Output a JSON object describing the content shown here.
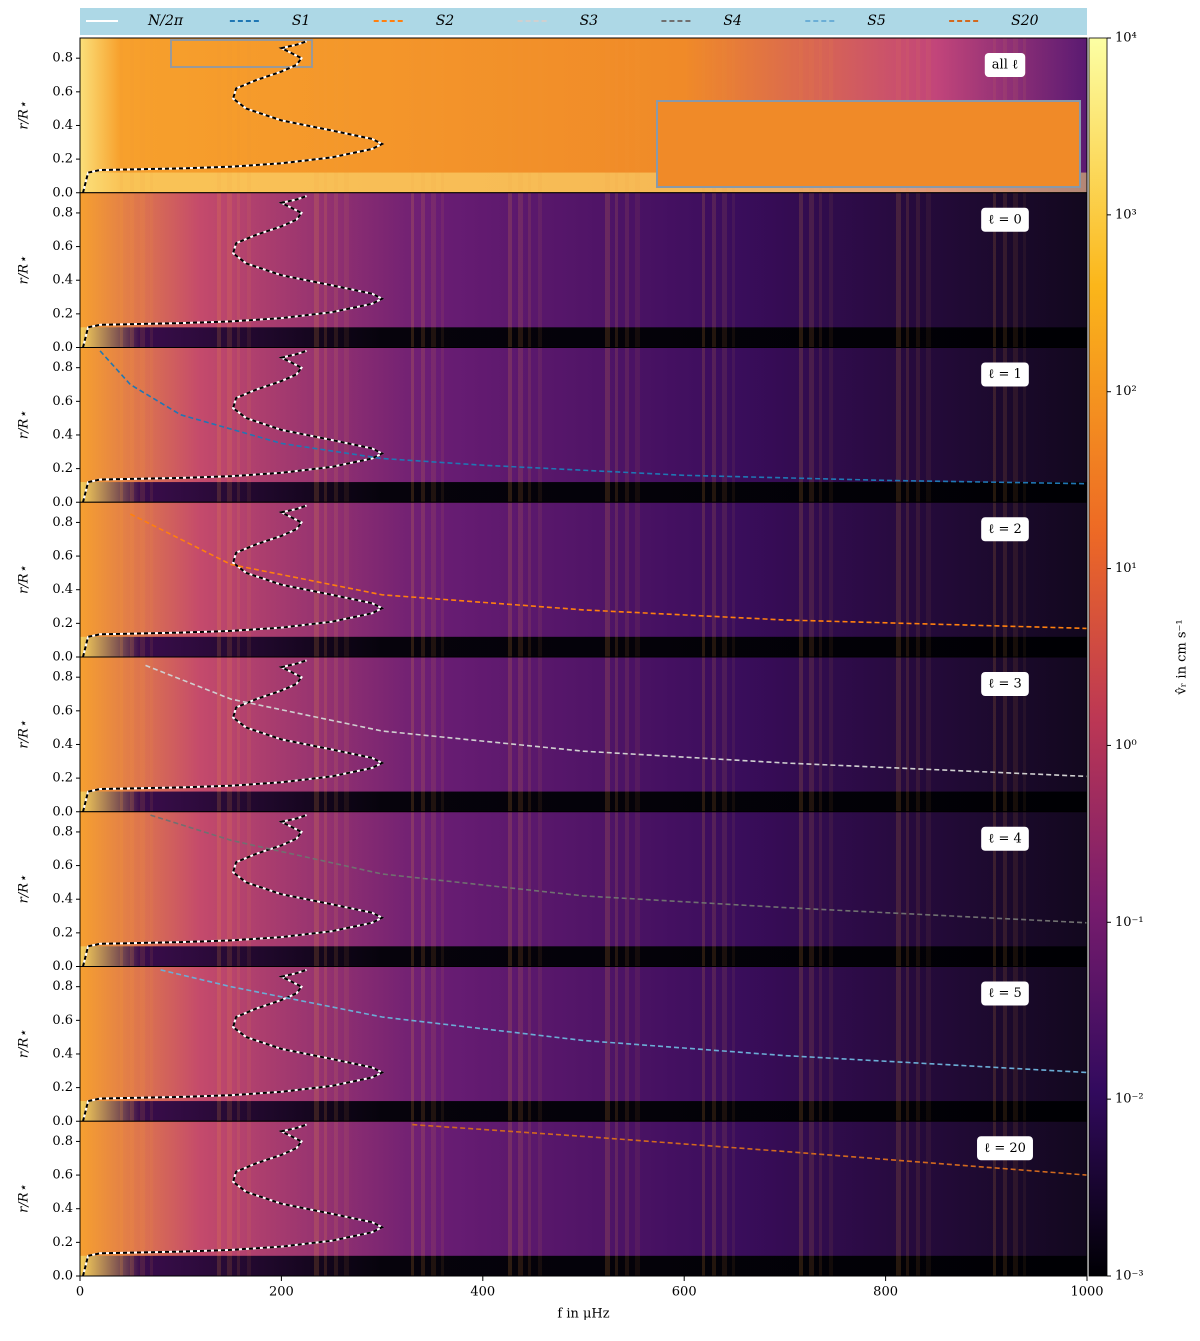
{
  "chart_data": [
    {
      "type": "heatmap",
      "annotation": "all ℓ",
      "ylabel": "r/R⋆",
      "xlim": [
        0,
        1000
      ],
      "ylim": [
        0,
        0.92
      ],
      "yticks": [
        {
          "value": 0,
          "label": "0.0"
        },
        0.2,
        0.4,
        0.6,
        0.8
      ],
      "series": [
        {
          "name": "N/2π",
          "color": "#ffffff",
          "x": [
            3,
            8,
            20,
            100,
            150,
            200,
            250,
            290,
            300,
            290,
            250,
            200,
            165,
            152,
            155,
            175,
            200,
            215,
            220,
            210,
            200,
            215,
            225
          ],
          "values": [
            0.0,
            0.12,
            0.135,
            0.145,
            0.155,
            0.175,
            0.21,
            0.26,
            0.29,
            0.32,
            0.37,
            0.43,
            0.5,
            0.56,
            0.62,
            0.67,
            0.72,
            0.76,
            0.8,
            0.83,
            0.86,
            0.88,
            0.9
          ]
        }
      ]
    },
    {
      "type": "heatmap",
      "annotation": "ℓ = 0",
      "ylabel": "r/R⋆",
      "xlim": [
        0,
        1000
      ],
      "ylim": [
        0,
        0.92
      ],
      "yticks": [
        {
          "value": 0,
          "label": "0.0"
        },
        0.2,
        0.4,
        0.6,
        0.8
      ],
      "series": []
    },
    {
      "type": "heatmap",
      "annotation": "ℓ = 1",
      "ylabel": "r/R⋆",
      "xlim": [
        0,
        1000
      ],
      "ylim": [
        0,
        0.92
      ],
      "yticks": [
        {
          "value": 0,
          "label": "0.0"
        },
        0.2,
        0.4,
        0.6,
        0.8
      ],
      "series": [
        {
          "name": "S1",
          "color": "#1f77b4",
          "x": [
            20,
            50,
            100,
            200,
            300,
            400,
            600,
            800,
            1000
          ],
          "values": [
            0.9,
            0.7,
            0.52,
            0.35,
            0.26,
            0.22,
            0.16,
            0.13,
            0.11
          ]
        }
      ]
    },
    {
      "type": "heatmap",
      "annotation": "ℓ = 2",
      "ylabel": "r/R⋆",
      "xlim": [
        0,
        1000
      ],
      "ylim": [
        0,
        0.92
      ],
      "yticks": [
        {
          "value": 0,
          "label": "0.0"
        },
        0.2,
        0.4,
        0.6,
        0.8
      ],
      "series": [
        {
          "name": "S2",
          "color": "#ff7f0e",
          "x": [
            50,
            150,
            300,
            500,
            700,
            1000
          ],
          "values": [
            0.85,
            0.55,
            0.37,
            0.28,
            0.22,
            0.17
          ]
        }
      ]
    },
    {
      "type": "heatmap",
      "annotation": "ℓ = 3",
      "ylabel": "r/R⋆",
      "xlim": [
        0,
        1000
      ],
      "ylim": [
        0,
        0.92
      ],
      "yticks": [
        {
          "value": 0,
          "label": "0.0"
        },
        0.2,
        0.4,
        0.6,
        0.8
      ],
      "series": [
        {
          "name": "S3",
          "color": "#d0d0d0",
          "x": [
            65,
            150,
            300,
            500,
            700,
            1000
          ],
          "values": [
            0.87,
            0.67,
            0.48,
            0.36,
            0.29,
            0.21
          ]
        }
      ]
    },
    {
      "type": "heatmap",
      "annotation": "ℓ = 4",
      "ylabel": "r/R⋆",
      "xlim": [
        0,
        1000
      ],
      "ylim": [
        0,
        0.92
      ],
      "yticks": [
        {
          "value": 0,
          "label": "0.0"
        },
        0.2,
        0.4,
        0.6,
        0.8
      ],
      "series": [
        {
          "name": "S4",
          "color": "#707070",
          "x": [
            70,
            150,
            300,
            500,
            700,
            1000
          ],
          "values": [
            0.9,
            0.75,
            0.55,
            0.42,
            0.35,
            0.26
          ]
        }
      ]
    },
    {
      "type": "heatmap",
      "annotation": "ℓ = 5",
      "ylabel": "r/R⋆",
      "xlim": [
        0,
        1000
      ],
      "ylim": [
        0,
        0.92
      ],
      "yticks": [
        {
          "value": 0,
          "label": "0.0"
        },
        0.2,
        0.4,
        0.6,
        0.8
      ],
      "series": [
        {
          "name": "S5",
          "color": "#6baed6",
          "x": [
            80,
            150,
            300,
            500,
            700,
            1000
          ],
          "values": [
            0.9,
            0.8,
            0.62,
            0.48,
            0.39,
            0.29
          ]
        }
      ]
    },
    {
      "type": "heatmap",
      "annotation": "ℓ = 20",
      "ylabel": "r/R⋆",
      "xlim": [
        0,
        1000
      ],
      "ylim": [
        0,
        0.92
      ],
      "yticks": [
        {
          "value": 0,
          "label": "0.0"
        },
        0.2,
        0.4,
        0.6,
        0.8
      ],
      "xticks": [
        0,
        200,
        400,
        600,
        800,
        1000
      ],
      "xlabel": "f in μHz",
      "series": [
        {
          "name": "S20",
          "color": "#d2691e",
          "x": [
            330,
            500,
            700,
            1000
          ],
          "values": [
            0.9,
            0.83,
            0.74,
            0.6
          ]
        }
      ]
    },
    {
      "type": "colorbar",
      "label": "v̂ᵣ in cm s⁻¹",
      "log_scale": true,
      "ylim": [
        0.001,
        10000
      ],
      "yticks": [
        {
          "value": 0.001,
          "label": "10⁻³"
        },
        {
          "value": 0.01,
          "label": "10⁻²"
        },
        {
          "value": 0.1,
          "label": "10⁻¹"
        },
        {
          "value": 1,
          "label": "10⁰"
        },
        {
          "value": 10,
          "label": "10¹"
        },
        {
          "value": 100,
          "label": "10²"
        },
        {
          "value": 1000,
          "label": "10³"
        },
        {
          "value": 10000,
          "label": "10⁴"
        }
      ]
    }
  ]
}
